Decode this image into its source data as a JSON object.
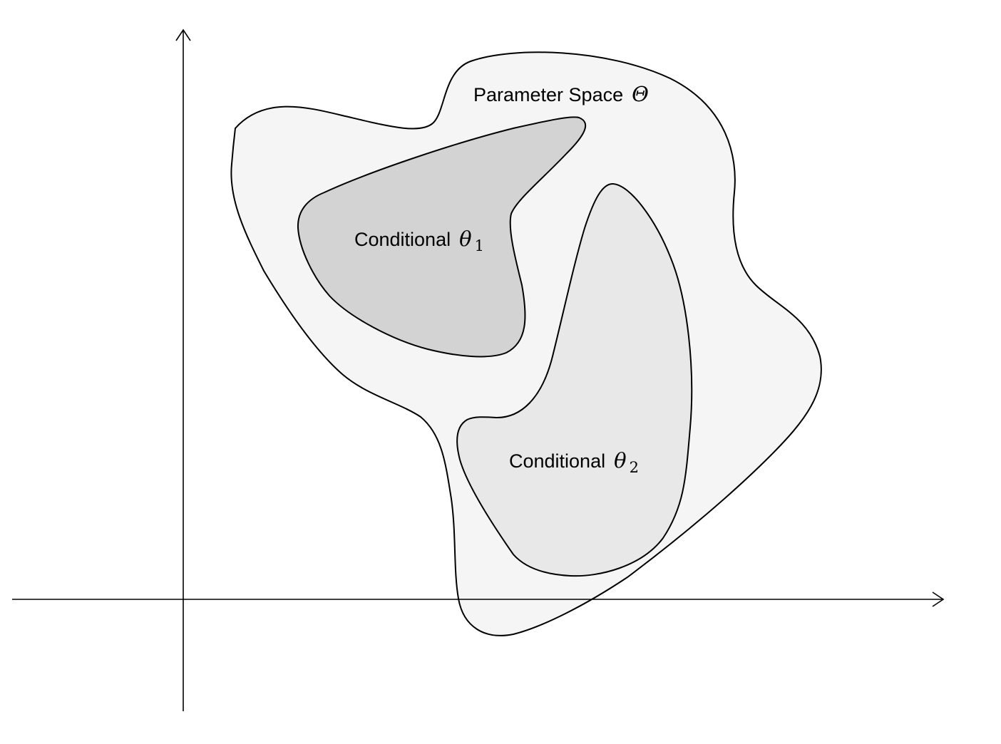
{
  "regions": {
    "parameter_space": {
      "label": "Parameter Space",
      "symbol": "Θ",
      "fill": "#f5f5f5"
    },
    "conditional_1": {
      "label": "Conditional",
      "symbol": "θ",
      "subscript": "1",
      "fill": "#d3d3d3"
    },
    "conditional_2": {
      "label": "Conditional",
      "symbol": "θ",
      "subscript": "2",
      "fill": "#e8e8e8"
    }
  },
  "colors": {
    "outline": "#000000",
    "background": "#ffffff"
  }
}
